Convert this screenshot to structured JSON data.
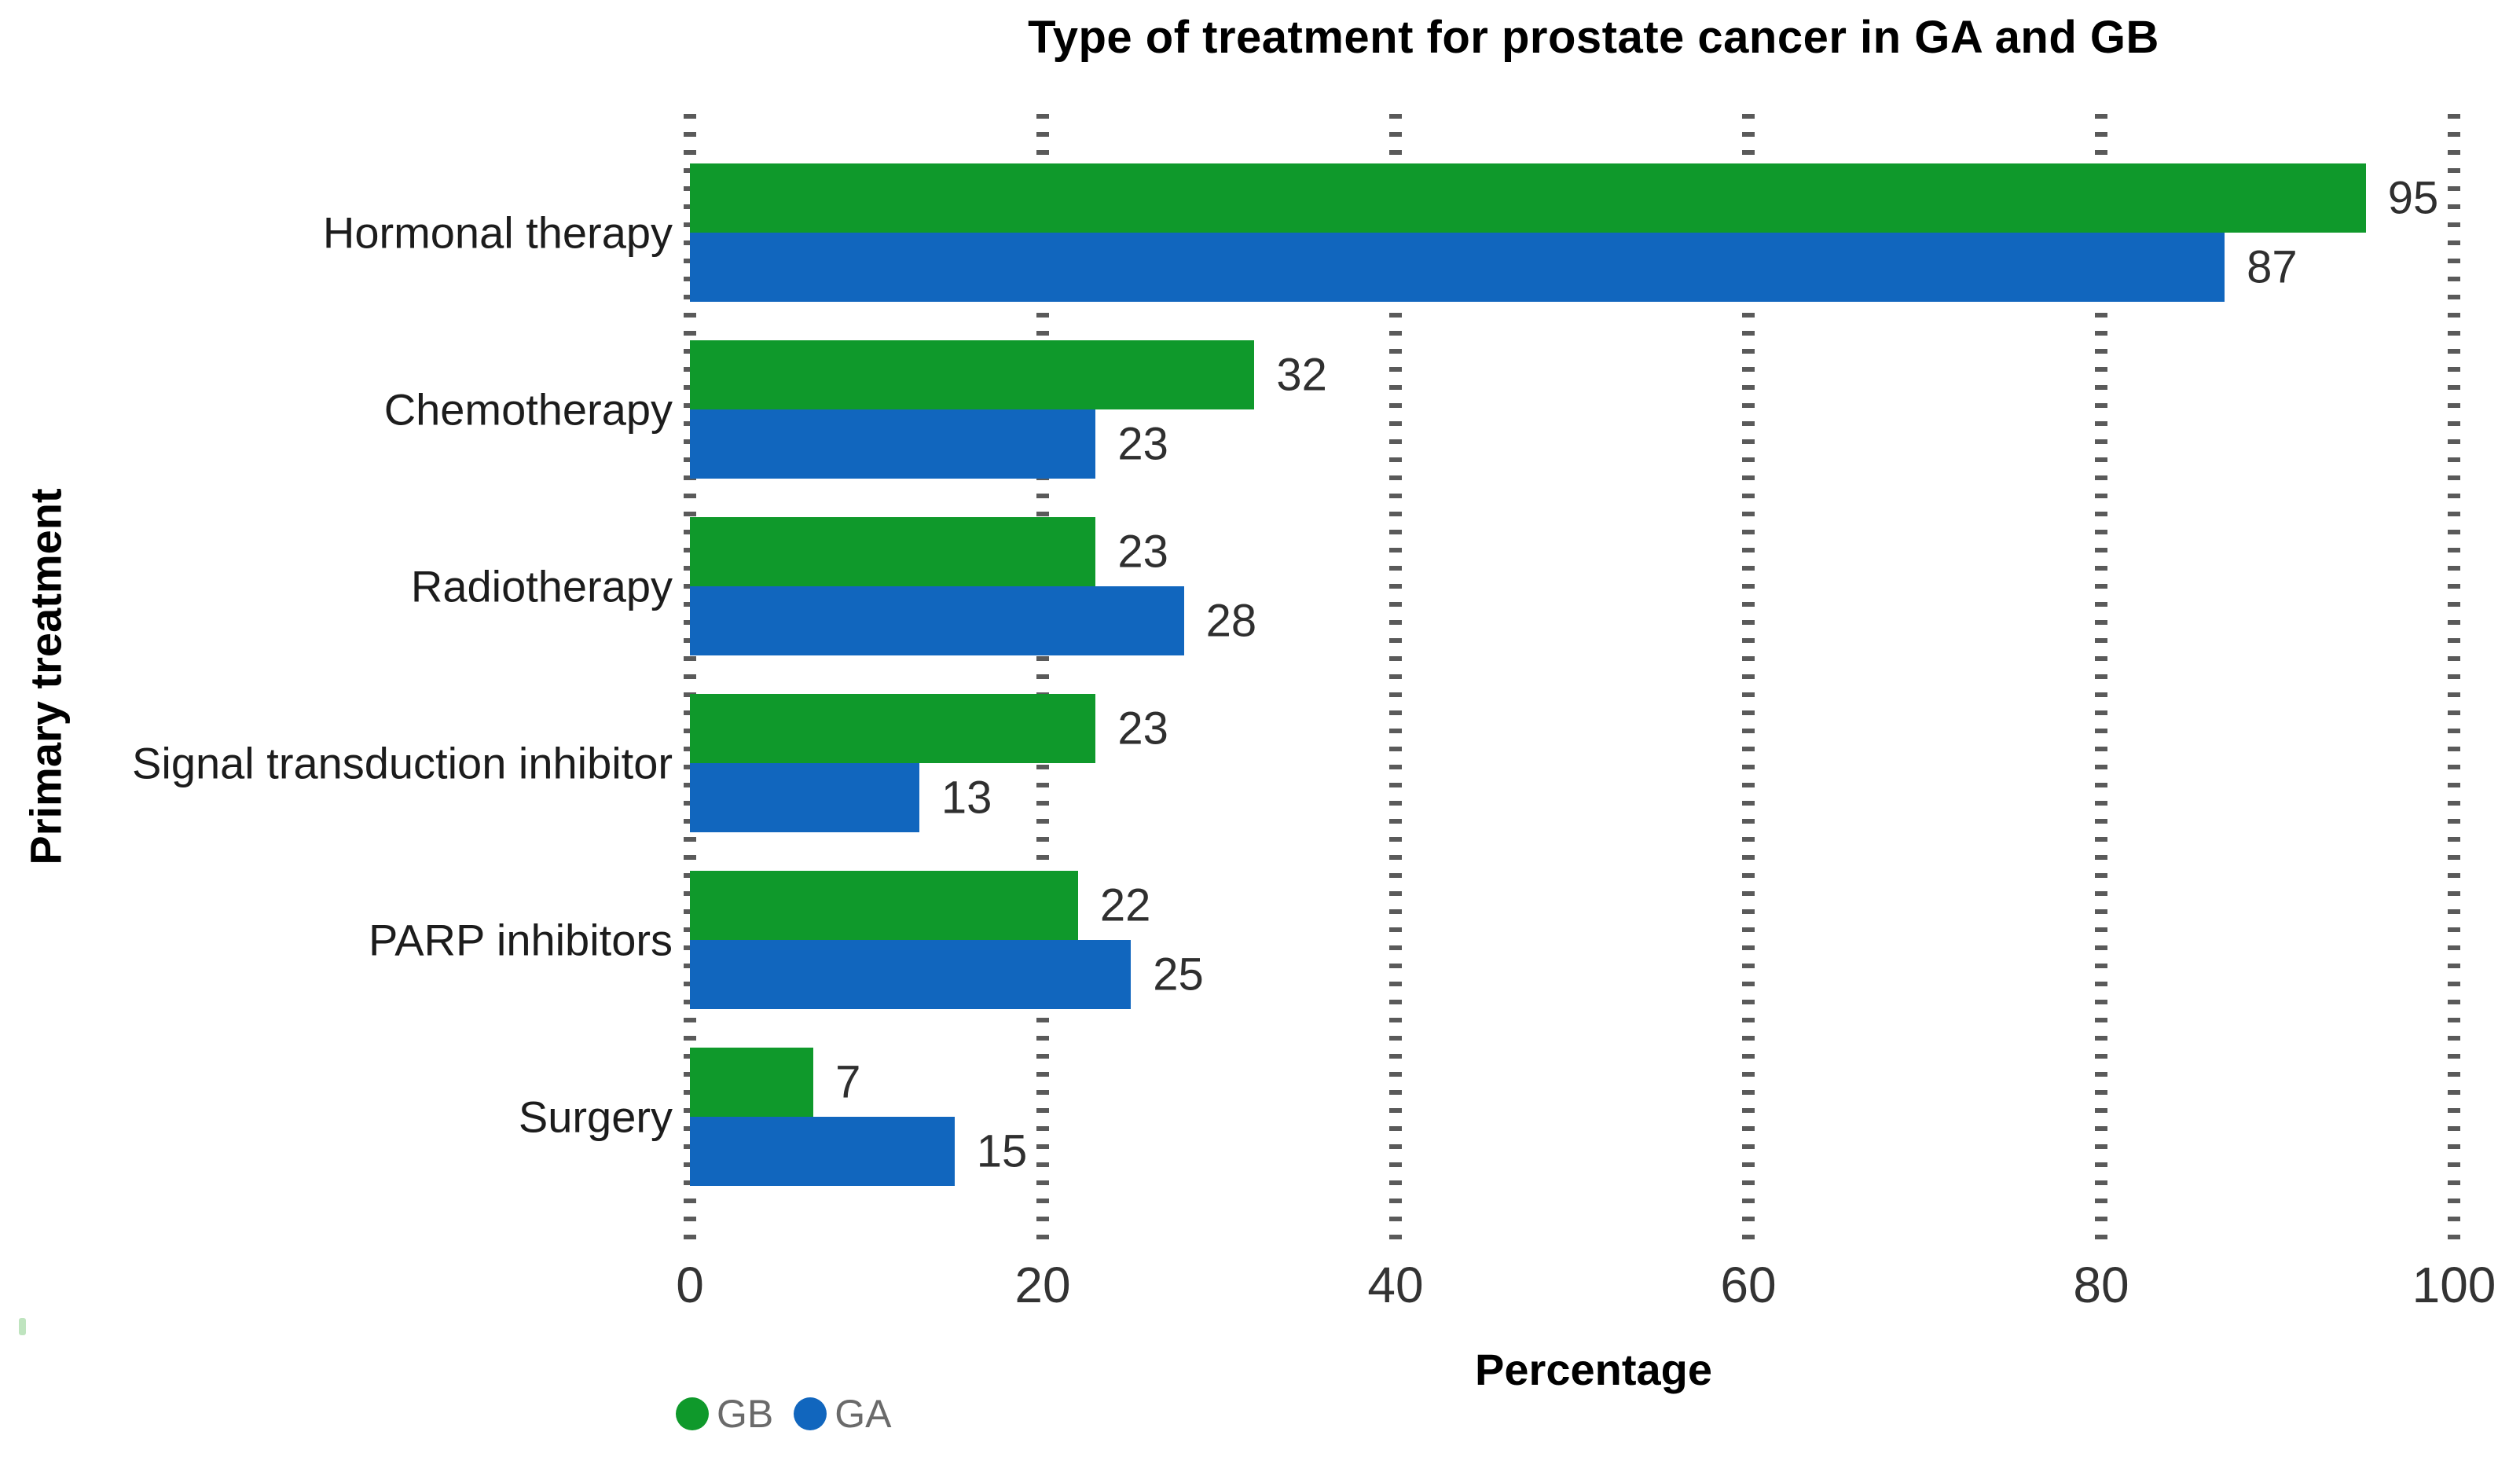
{
  "page": {
    "background": "#ffffff"
  },
  "chart_data": {
    "type": "bar",
    "orientation": "horizontal",
    "title": "Type of treatment for prostate cancer in GA and GB",
    "xlabel": "Percentage",
    "ylabel": "Primary treatment",
    "categories": [
      "Hormonal therapy",
      "Chemotherapy",
      "Radiotherapy",
      "Signal transduction inhibitor",
      "PARP inhibitors",
      "Surgery"
    ],
    "series": [
      {
        "name": "GB",
        "color": "#0F992B",
        "values": [
          95,
          32,
          23,
          23,
          22,
          7
        ]
      },
      {
        "name": "GA",
        "color": "#1166BE",
        "values": [
          87,
          23,
          28,
          13,
          25,
          15
        ]
      }
    ],
    "xlim": [
      0,
      100
    ],
    "xticks": [
      0,
      20,
      40,
      60,
      80,
      100
    ],
    "grid": "dashed-vertical-at-xticks",
    "legend_position": "bottom-left",
    "bar_value_labels": true
  },
  "colors": {
    "gridline": "#5a5a5a",
    "tick_label": "#333333",
    "category_label": "#1c1c1c",
    "data_label": "#2f2f2f",
    "legend_text": "#6a6a6a",
    "title": "#000000"
  }
}
